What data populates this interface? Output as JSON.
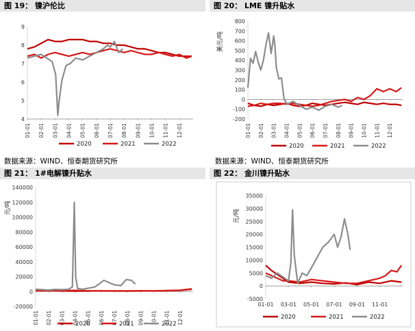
{
  "panels": [
    {
      "title": "图 19：  镍沪伦比"
    },
    {
      "title": "图 20：  LME 镍升贴水"
    },
    {
      "title": "图 21：  1#电解镍升贴水"
    },
    {
      "title": "图 22：  金川镍升贴水"
    }
  ],
  "sources": {
    "left": "数据来源：WIND、恒泰期货研究所",
    "right": "数据来源：WIND、恒泰期货研究所"
  },
  "colors": {
    "s2020": "#c00000",
    "s2021": "#d61919",
    "s2022": "#8c8c8c"
  },
  "chart_data": [
    {
      "type": "line",
      "x_labels": [
        "01-01",
        "02-01",
        "03-01",
        "04-01",
        "05-01",
        "06-01",
        "07-01",
        "08-01",
        "09-01",
        "10-01",
        "11-01",
        "12-01"
      ],
      "yticks": [
        "4",
        "5",
        "6",
        "7",
        "8",
        "9"
      ],
      "ylim": [
        4,
        9
      ],
      "legend": [
        "2020",
        "2021",
        "2022"
      ],
      "series": [
        {
          "name": "2020",
          "x": [
            0,
            0.5,
            1,
            1.5,
            2,
            2.5,
            3,
            3.5,
            4,
            4.5,
            5,
            5.5,
            6,
            6.5,
            7,
            7.5,
            8,
            8.5,
            9,
            9.5,
            10,
            10.5,
            11,
            11.5,
            11.9
          ],
          "y": [
            7.8,
            7.9,
            8.1,
            8.3,
            8.2,
            8.2,
            8.3,
            8.3,
            8.3,
            8.2,
            8.2,
            8.1,
            8.1,
            8.0,
            8.0,
            7.9,
            7.8,
            7.8,
            7.7,
            7.6,
            7.6,
            7.5,
            7.4,
            7.4,
            7.4
          ]
        },
        {
          "name": "2021",
          "x": [
            0,
            0.5,
            1,
            1.5,
            2,
            2.5,
            3,
            3.5,
            4,
            4.5,
            5,
            5.5,
            6,
            6.5,
            7,
            7.5,
            8,
            8.5,
            9,
            9.5,
            10,
            10.5,
            11,
            11.5,
            11.9
          ],
          "y": [
            7.4,
            7.5,
            7.3,
            7.5,
            7.6,
            7.5,
            7.4,
            7.5,
            7.6,
            7.5,
            7.6,
            7.7,
            7.8,
            7.7,
            7.6,
            7.7,
            7.6,
            7.5,
            7.5,
            7.6,
            7.5,
            7.4,
            7.5,
            7.3,
            7.4
          ]
        },
        {
          "name": "2022",
          "x": [
            0,
            0.5,
            1,
            1.4,
            1.8,
            2.05,
            2.2,
            2.3,
            2.5,
            2.8,
            3.1,
            3.5,
            4,
            4.5,
            5,
            5.5,
            5.8,
            6,
            6.3,
            6.6,
            6.9
          ],
          "y": [
            7.3,
            7.4,
            7.5,
            7.3,
            7.1,
            6.4,
            4.2,
            5.0,
            6.1,
            6.9,
            7.0,
            7.3,
            7.2,
            7.4,
            7.6,
            7.8,
            8.0,
            7.9,
            8.2,
            7.6,
            7.8
          ]
        }
      ]
    },
    {
      "type": "line",
      "x_labels": [
        "01-01",
        "02-01",
        "03-01",
        "04-01",
        "05-01",
        "06-01",
        "07-01",
        "08-01",
        "09-01",
        "10-01",
        "11-01",
        "12-01"
      ],
      "yticks": [
        "-200",
        "-100",
        "0",
        "100",
        "200",
        "300",
        "400",
        "500",
        "600",
        "700",
        "800"
      ],
      "ylim": [
        -200,
        800
      ],
      "ylabel": "美元/吨",
      "legend": [
        "2020",
        "2021",
        "2022"
      ],
      "series": [
        {
          "name": "2020",
          "x": [
            0,
            0.5,
            1,
            1.5,
            2,
            2.5,
            3,
            3.5,
            4,
            4.5,
            5,
            5.5,
            6,
            6.5,
            7,
            7.5,
            8,
            8.5,
            9,
            9.5,
            10,
            10.5,
            11,
            11.5,
            11.9
          ],
          "y": [
            -40,
            -60,
            -70,
            -50,
            -60,
            -50,
            -40,
            -60,
            -70,
            -60,
            -40,
            -50,
            -60,
            -50,
            -40,
            -30,
            -40,
            -50,
            -30,
            -40,
            -50,
            -40,
            -50,
            -50,
            -60
          ]
        },
        {
          "name": "2021",
          "x": [
            0,
            0.5,
            1,
            1.5,
            2,
            2.5,
            3,
            3.5,
            4,
            4.5,
            5,
            5.5,
            6,
            6.5,
            7,
            7.5,
            8,
            8.5,
            9,
            9.5,
            10,
            10.5,
            11,
            11.5,
            11.9
          ],
          "y": [
            -70,
            -60,
            -40,
            -50,
            -40,
            -40,
            -50,
            -40,
            -50,
            -60,
            -70,
            -60,
            -40,
            -20,
            -10,
            0,
            -20,
            20,
            0,
            40,
            110,
            80,
            110,
            80,
            120
          ]
        },
        {
          "name": "2022",
          "x": [
            0,
            0.2,
            0.4,
            0.6,
            0.8,
            1,
            1.2,
            1.4,
            1.6,
            1.8,
            2,
            2.1,
            2.2,
            2.4,
            2.6,
            2.8,
            3,
            3.5,
            4,
            4.5,
            5,
            5.5,
            6,
            6.5,
            7,
            7.3
          ],
          "y": [
            120,
            420,
            370,
            490,
            380,
            300,
            400,
            560,
            680,
            470,
            650,
            540,
            330,
            210,
            220,
            10,
            -50,
            -20,
            -60,
            -100,
            -80,
            -110,
            -70,
            -50,
            -80,
            -60
          ]
        }
      ]
    },
    {
      "type": "line",
      "x_labels": [
        "01-01",
        "02-01",
        "03-01",
        "04-01",
        "05-01",
        "06-01",
        "07-01",
        "08-01",
        "09-01",
        "10-01",
        "11-01",
        "12-01"
      ],
      "yticks": [
        "-20000",
        "0",
        "20000",
        "40000",
        "60000",
        "80000",
        "100000",
        "120000",
        "140000"
      ],
      "ylim": [
        -20000,
        140000
      ],
      "ylabel": "元/吨",
      "legend": [
        "2020",
        "2021",
        "2022"
      ],
      "series": [
        {
          "name": "2020",
          "x": [
            0,
            1,
            2,
            3,
            4,
            5,
            6,
            7,
            8,
            9,
            10,
            11,
            11.9
          ],
          "y": [
            2500,
            1500,
            800,
            600,
            700,
            900,
            800,
            900,
            1000,
            900,
            1200,
            1500,
            3000
          ]
        },
        {
          "name": "2021",
          "x": [
            0,
            1,
            2,
            3,
            4,
            5,
            6,
            7,
            8,
            9,
            10,
            11,
            11.9
          ],
          "y": [
            1000,
            900,
            1200,
            1500,
            1000,
            800,
            700,
            600,
            800,
            900,
            1100,
            1800,
            3500
          ]
        },
        {
          "name": "2022",
          "x": [
            0,
            0.5,
            1,
            1.5,
            2,
            2.5,
            2.8,
            2.95,
            3.05,
            3.2,
            3.6,
            4,
            4.5,
            4.9,
            5.2,
            5.6,
            6,
            6.5,
            6.9,
            7.3,
            7.6
          ],
          "y": [
            3000,
            2500,
            2000,
            2800,
            2500,
            3000,
            6000,
            120000,
            20000,
            4000,
            3000,
            4500,
            6000,
            11000,
            15000,
            12000,
            9000,
            8000,
            16000,
            15000,
            10000
          ]
        }
      ]
    },
    {
      "type": "line",
      "x_labels": [
        "01-01",
        "03-01",
        "05-01",
        "07-01",
        "09-01",
        "11-01"
      ],
      "yticks": [
        "-5000",
        "0",
        "5000",
        "10000",
        "15000",
        "20000",
        "25000",
        "30000",
        "35000"
      ],
      "ylim": [
        -5000,
        35000
      ],
      "ylabel": "元/吨",
      "legend": [
        "2020",
        "2021",
        "2022"
      ],
      "series": [
        {
          "name": "2020",
          "x": [
            0,
            0.5,
            1,
            1.5,
            2,
            3,
            4,
            5,
            6,
            7,
            8,
            9,
            10,
            11,
            11.9
          ],
          "y": [
            8000,
            6000,
            4500,
            3000,
            1500,
            1000,
            1500,
            1000,
            800,
            1200,
            500,
            1500,
            1000,
            2000,
            1500
          ]
        },
        {
          "name": "2021",
          "x": [
            0,
            0.5,
            1,
            1.5,
            2,
            3,
            4,
            5,
            6,
            7,
            8,
            9,
            10,
            10.5,
            11,
            11.5,
            11.9
          ],
          "y": [
            5000,
            4000,
            3000,
            2000,
            2000,
            1500,
            2500,
            2000,
            1500,
            1000,
            1000,
            2000,
            3000,
            4000,
            6000,
            5500,
            8000
          ]
        },
        {
          "name": "2022",
          "x": [
            0,
            0.5,
            1,
            1.5,
            2,
            2.2,
            2.35,
            2.5,
            2.8,
            3.2,
            3.6,
            4,
            4.5,
            5,
            5.5,
            6,
            6.3,
            6.6,
            6.9,
            7.2,
            7.4
          ],
          "y": [
            4000,
            3000,
            5000,
            3500,
            2000,
            9000,
            29500,
            12000,
            1000,
            5000,
            4000,
            7000,
            11000,
            15000,
            17000,
            20000,
            15000,
            19000,
            26000,
            20000,
            14000
          ]
        }
      ]
    }
  ]
}
